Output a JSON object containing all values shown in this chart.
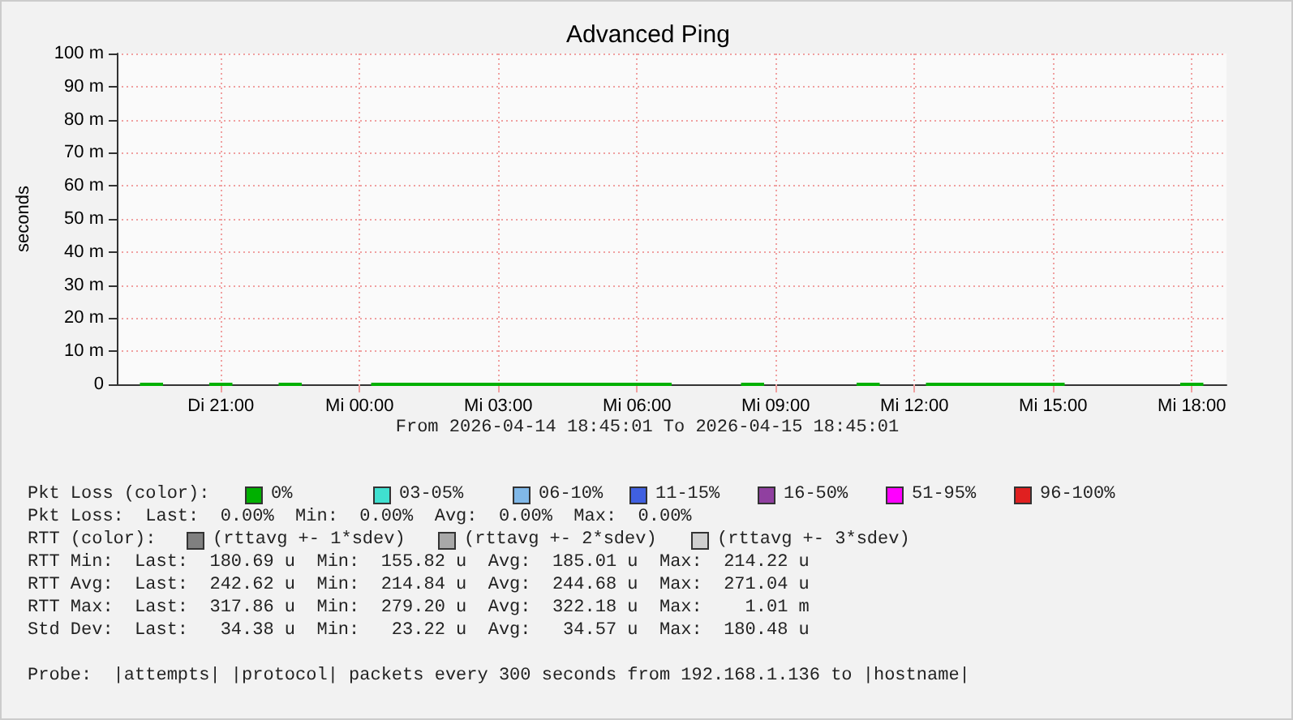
{
  "chart_data": {
    "type": "line",
    "title": "Advanced Ping",
    "ylabel": "seconds",
    "x": [
      "2026-04-14T19:15",
      "2026-04-14T19:45",
      "2026-04-14T20:15",
      "2026-04-14T20:45",
      "2026-04-14T21:15",
      "2026-04-14T21:45",
      "2026-04-14T22:15",
      "2026-04-14T22:45",
      "2026-04-14T23:15",
      "2026-04-14T23:45",
      "2026-04-15T00:15",
      "2026-04-15T00:45",
      "2026-04-15T01:15",
      "2026-04-15T01:45",
      "2026-04-15T02:15",
      "2026-04-15T02:45",
      "2026-04-15T03:15",
      "2026-04-15T03:45",
      "2026-04-15T04:15",
      "2026-04-15T04:45",
      "2026-04-15T05:15",
      "2026-04-15T05:45",
      "2026-04-15T06:15",
      "2026-04-15T06:45",
      "2026-04-15T07:15",
      "2026-04-15T07:45",
      "2026-04-15T08:15",
      "2026-04-15T08:45",
      "2026-04-15T09:15",
      "2026-04-15T09:45",
      "2026-04-15T10:15",
      "2026-04-15T10:45",
      "2026-04-15T11:15",
      "2026-04-15T11:45",
      "2026-04-15T12:15",
      "2026-04-15T12:45",
      "2026-04-15T13:15",
      "2026-04-15T13:45",
      "2026-04-15T14:15",
      "2026-04-15T14:45",
      "2026-04-15T15:15",
      "2026-04-15T15:45",
      "2026-04-15T16:15",
      "2026-04-15T16:45",
      "2026-04-15T17:15",
      "2026-04-15T17:45",
      "2026-04-15T18:15"
    ],
    "series": [
      {
        "color": "#00b000",
        "values": [
          0,
          0,
          null,
          0,
          0,
          null,
          0,
          0,
          null,
          null,
          0,
          0,
          0,
          0,
          0,
          0,
          0,
          0,
          0,
          0,
          0,
          0,
          0,
          0,
          null,
          null,
          0,
          0,
          null,
          null,
          null,
          0,
          0,
          null,
          0,
          0,
          0,
          0,
          0,
          0,
          0,
          null,
          null,
          null,
          null,
          0,
          0
        ]
      }
    ],
    "xlim": [
      "2026-04-14T18:45",
      "2026-04-15T18:45"
    ],
    "xticks": [
      {
        "value": "2026-04-14T21:00",
        "label": "Di 21:00"
      },
      {
        "value": "2026-04-15T00:00",
        "label": "Mi 00:00"
      },
      {
        "value": "2026-04-15T03:00",
        "label": "Mi 03:00"
      },
      {
        "value": "2026-04-15T06:00",
        "label": "Mi 06:00"
      },
      {
        "value": "2026-04-15T09:00",
        "label": "Mi 09:00"
      },
      {
        "value": "2026-04-15T12:00",
        "label": "Mi 12:00"
      },
      {
        "value": "2026-04-15T15:00",
        "label": "Mi 15:00"
      },
      {
        "value": "2026-04-15T18:00",
        "label": "Mi 18:00"
      }
    ],
    "ylim": [
      0,
      100
    ],
    "yticks": [
      0,
      {
        "value": 10,
        "label": "10 m"
      },
      {
        "value": 20,
        "label": "20 m"
      },
      {
        "value": 30,
        "label": "30 m"
      },
      {
        "value": 40,
        "label": "40 m"
      },
      {
        "value": 50,
        "label": "50 m"
      },
      {
        "value": 60,
        "label": "60 m"
      },
      {
        "value": 70,
        "label": "70 m"
      },
      {
        "value": 80,
        "label": "80 m"
      },
      {
        "value": 90,
        "label": "90 m"
      },
      {
        "value": 100,
        "label": "100 m"
      }
    ],
    "grid": true,
    "marker": "none",
    "line_style": "solid",
    "annotations": [
      "From 2026-04-14 18:45:01 To 2026-04-15 18:45:01",
      "Pkt Loss (color):",
      "0%",
      "03-05%",
      "06-10%",
      "11-15%",
      "16-50%",
      "51-95%",
      "96-100%",
      "Pkt Loss:  Last:  0.00%  Min:  0.00%  Avg:  0.00%  Max:  0.00%",
      "RTT (color):",
      "(rttavg +- 1*sdev)",
      "(rttavg +- 2*sdev)",
      "(rttavg +- 3*sdev)",
      "RTT Min:  Last:  180.69 u  Min:  155.82 u  Avg:  185.01 u  Max:  214.22 u",
      "RTT Avg:  Last:  242.62 u  Min:  214.84 u  Avg:  244.68 u  Max:  271.04 u",
      "RTT Max:  Last:  317.86 u  Min:  279.20 u  Avg:  322.18 u  Max:    1.01 m",
      "Std Dev:  Last:   34.38 u  Min:   23.22 u  Avg:   34.57 u  Max:  180.48 u",
      "Probe:  |attempts| |protocol| packets every 300 seconds from 192.168.1.136 to |hostname|"
    ]
  }
}
